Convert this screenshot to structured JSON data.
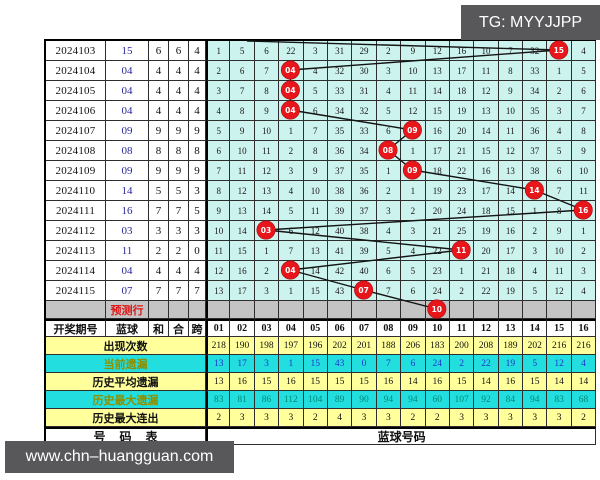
{
  "watermarks": {
    "tg": "TG: MYYJJPP",
    "site": "www.chn–huangguan.com"
  },
  "colors": {
    "grid_cell_bg": "#cdf3ef",
    "stat_yellow_bg": "#ffff9c",
    "stat_cyan_bg": "#22dede",
    "prediction_row_bg": "#c4c4c4",
    "drawn_ball_red": "#e8161b",
    "blue_ball_text": "#28289a",
    "current_miss_value_text": "#2233cc",
    "max_miss_value_text": "#008877",
    "cyan_row_label_text": "#8f8f00",
    "prediction_label_text": "#e01616",
    "watermark_bg": "#58585a"
  },
  "table": {
    "left_headers": [
      "开奖期号",
      "蓝球",
      "和",
      "合",
      "跨"
    ],
    "ball_headers": [
      "01",
      "02",
      "03",
      "04",
      "05",
      "06",
      "07",
      "08",
      "09",
      "10",
      "11",
      "12",
      "13",
      "14",
      "15",
      "16"
    ],
    "footer_left": "号码表",
    "footer_right": "蓝球号码"
  },
  "periods": [
    {
      "period": "2024103",
      "blue": "15",
      "sum": "6",
      "combo": "6",
      "span": "4",
      "circle_col": 15,
      "circle_label": "15",
      "cells": [
        "1",
        "5",
        "6",
        "22",
        "3",
        "31",
        "29",
        "2",
        "9",
        "12",
        "16",
        "10",
        "7",
        "32",
        "",
        "4"
      ]
    },
    {
      "period": "2024104",
      "blue": "04",
      "sum": "4",
      "combo": "4",
      "span": "4",
      "circle_col": 4,
      "circle_label": "04",
      "cells": [
        "2",
        "6",
        "7",
        "",
        "4",
        "32",
        "30",
        "3",
        "10",
        "13",
        "17",
        "11",
        "8",
        "33",
        "1",
        "5"
      ]
    },
    {
      "period": "2024105",
      "blue": "04",
      "sum": "4",
      "combo": "4",
      "span": "4",
      "circle_col": 4,
      "circle_label": "04",
      "cells": [
        "3",
        "7",
        "8",
        "",
        "5",
        "33",
        "31",
        "4",
        "11",
        "14",
        "18",
        "12",
        "9",
        "34",
        "2",
        "6"
      ]
    },
    {
      "period": "2024106",
      "blue": "04",
      "sum": "4",
      "combo": "4",
      "span": "4",
      "circle_col": 4,
      "circle_label": "04",
      "cells": [
        "4",
        "8",
        "9",
        "",
        "6",
        "34",
        "32",
        "5",
        "12",
        "15",
        "19",
        "13",
        "10",
        "35",
        "3",
        "7"
      ]
    },
    {
      "period": "2024107",
      "blue": "09",
      "sum": "9",
      "combo": "9",
      "span": "9",
      "circle_col": 9,
      "circle_label": "09",
      "cells": [
        "5",
        "9",
        "10",
        "1",
        "7",
        "35",
        "33",
        "6",
        "",
        "16",
        "20",
        "14",
        "11",
        "36",
        "4",
        "8"
      ]
    },
    {
      "period": "2024108",
      "blue": "08",
      "sum": "8",
      "combo": "8",
      "span": "8",
      "circle_col": 8,
      "circle_label": "08",
      "cells": [
        "6",
        "10",
        "11",
        "2",
        "8",
        "36",
        "34",
        "",
        "1",
        "17",
        "21",
        "15",
        "12",
        "37",
        "5",
        "9"
      ]
    },
    {
      "period": "2024109",
      "blue": "09",
      "sum": "9",
      "combo": "9",
      "span": "9",
      "circle_col": 9,
      "circle_label": "09",
      "cells": [
        "7",
        "11",
        "12",
        "3",
        "9",
        "37",
        "35",
        "1",
        "",
        "18",
        "22",
        "16",
        "13",
        "38",
        "6",
        "10"
      ]
    },
    {
      "period": "2024110",
      "blue": "14",
      "sum": "5",
      "combo": "5",
      "span": "3",
      "circle_col": 14,
      "circle_label": "14",
      "cells": [
        "8",
        "12",
        "13",
        "4",
        "10",
        "38",
        "36",
        "2",
        "1",
        "19",
        "23",
        "17",
        "14",
        "",
        "7",
        "11"
      ]
    },
    {
      "period": "2024111",
      "blue": "16",
      "sum": "7",
      "combo": "7",
      "span": "5",
      "circle_col": 16,
      "circle_label": "16",
      "cells": [
        "9",
        "13",
        "14",
        "5",
        "11",
        "39",
        "37",
        "3",
        "2",
        "20",
        "24",
        "18",
        "15",
        "1",
        "8",
        ""
      ]
    },
    {
      "period": "2024112",
      "blue": "03",
      "sum": "3",
      "combo": "3",
      "span": "3",
      "circle_col": 3,
      "circle_label": "03",
      "cells": [
        "10",
        "14",
        "",
        "6",
        "12",
        "40",
        "38",
        "4",
        "3",
        "21",
        "25",
        "19",
        "16",
        "2",
        "9",
        "1"
      ]
    },
    {
      "period": "2024113",
      "blue": "11",
      "sum": "2",
      "combo": "2",
      "span": "0",
      "circle_col": 11,
      "circle_label": "11",
      "cells": [
        "11",
        "15",
        "1",
        "7",
        "13",
        "41",
        "39",
        "5",
        "4",
        "22",
        "",
        "20",
        "17",
        "3",
        "10",
        "2"
      ]
    },
    {
      "period": "2024114",
      "blue": "04",
      "sum": "4",
      "combo": "4",
      "span": "4",
      "circle_col": 4,
      "circle_label": "04",
      "cells": [
        "12",
        "16",
        "2",
        "",
        "14",
        "42",
        "40",
        "6",
        "5",
        "23",
        "1",
        "21",
        "18",
        "4",
        "11",
        "3"
      ]
    },
    {
      "period": "2024115",
      "blue": "07",
      "sum": "7",
      "combo": "7",
      "span": "7",
      "circle_col": 7,
      "circle_label": "07",
      "cells": [
        "13",
        "17",
        "3",
        "1",
        "15",
        "43",
        "",
        "7",
        "6",
        "24",
        "2",
        "22",
        "19",
        "5",
        "12",
        "4"
      ]
    }
  ],
  "prediction": {
    "label": "预测行",
    "circle_col": 10,
    "circle_label": "10"
  },
  "stats": [
    {
      "label": "出现次数",
      "style": "yellow",
      "values": [
        "218",
        "190",
        "198",
        "197",
        "196",
        "202",
        "201",
        "188",
        "206",
        "183",
        "200",
        "208",
        "189",
        "202",
        "216",
        "216"
      ]
    },
    {
      "label": "当前遗漏",
      "style": "cyan-blue",
      "values": [
        "13",
        "17",
        "3",
        "1",
        "15",
        "43",
        "0",
        "7",
        "6",
        "24",
        "2",
        "22",
        "19",
        "5",
        "12",
        "4"
      ]
    },
    {
      "label": "历史平均遗漏",
      "style": "yellow",
      "values": [
        "13",
        "16",
        "15",
        "16",
        "15",
        "15",
        "15",
        "16",
        "14",
        "16",
        "15",
        "14",
        "16",
        "15",
        "14",
        "14"
      ]
    },
    {
      "label": "历史最大遗漏",
      "style": "cyan-green",
      "values": [
        "83",
        "81",
        "86",
        "112",
        "104",
        "89",
        "90",
        "94",
        "94",
        "60",
        "107",
        "92",
        "84",
        "94",
        "83",
        "68"
      ]
    },
    {
      "label": "历史最大连出",
      "style": "yellow",
      "values": [
        "2",
        "3",
        "3",
        "3",
        "2",
        "4",
        "3",
        "3",
        "2",
        "2",
        "3",
        "3",
        "3",
        "3",
        "3",
        "2"
      ]
    }
  ]
}
